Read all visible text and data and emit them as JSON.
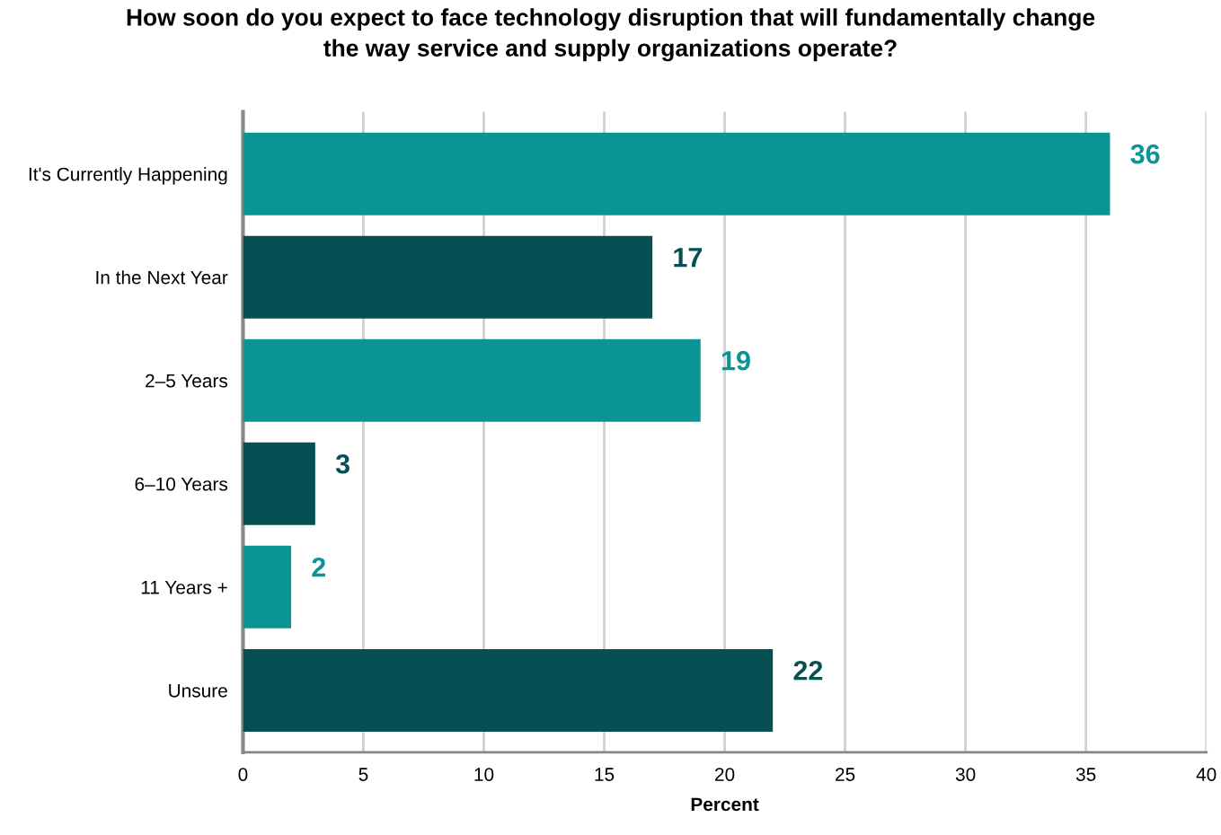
{
  "chart_data": {
    "type": "bar",
    "orientation": "horizontal",
    "title": "How soon do you expect to face technology disruption that will fundamentally change\nthe way service and supply organizations operate?",
    "categories": [
      "It's Currently Happening",
      "In the Next Year",
      "2–5 Years",
      "6–10 Years",
      "11 Years +",
      "Unsure"
    ],
    "values": [
      36,
      17,
      19,
      3,
      2,
      22
    ],
    "colors": [
      "#0b9494",
      "#064f52",
      "#0b9494",
      "#064f52",
      "#0b9494",
      "#064f52"
    ],
    "xlabel": "Percent",
    "xlim": [
      0,
      40
    ],
    "xticks": [
      0,
      5,
      10,
      15,
      20,
      25,
      30,
      35,
      40
    ],
    "grid": "x",
    "data_labels": true
  }
}
